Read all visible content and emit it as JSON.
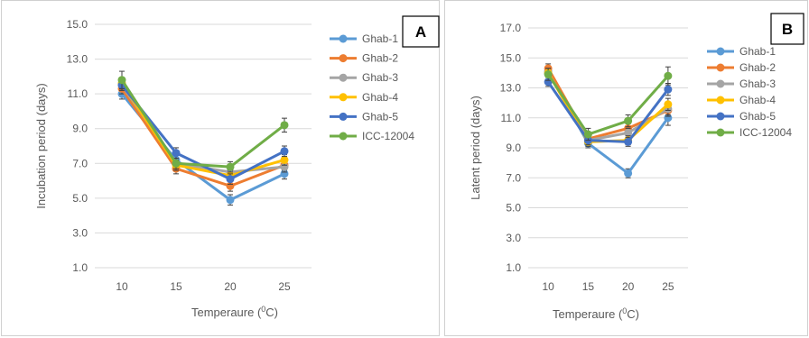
{
  "colors": {
    "Ghab-1": "#5b9bd5",
    "Ghab-2": "#ed7d31",
    "Ghab-3": "#a5a5a5",
    "Ghab-4": "#ffc000",
    "Ghab-5": "#4472c4",
    "ICC-12004": "#70ad47"
  },
  "chart_data": [
    {
      "panel": "A",
      "type": "line",
      "x": [
        "10",
        "15",
        "20",
        "25"
      ],
      "xlabel": "Temperaure (0C)",
      "xlabel_main": "Temperaure (",
      "xlabel_sup": "0",
      "xlabel_unit": "C)",
      "ylabel": "Incubation period (days)",
      "ylim": [
        1.0,
        15.0
      ],
      "yticks": [
        "1.0",
        "3.0",
        "5.0",
        "7.0",
        "9.0",
        "11.0",
        "13.0",
        "15.0"
      ],
      "grid": true,
      "legend": "right",
      "series": [
        {
          "name": "Ghab-1",
          "values": [
            11.0,
            7.2,
            4.9,
            6.4
          ],
          "err": [
            0.3,
            0.3,
            0.3,
            0.3
          ]
        },
        {
          "name": "Ghab-2",
          "values": [
            11.3,
            6.7,
            5.7,
            6.9
          ],
          "err": [
            0.3,
            0.3,
            0.3,
            0.3
          ]
        },
        {
          "name": "Ghab-3",
          "values": [
            11.5,
            7.0,
            6.5,
            6.8
          ],
          "err": [
            0.3,
            0.3,
            0.3,
            0.3
          ]
        },
        {
          "name": "Ghab-4",
          "values": [
            11.6,
            6.9,
            6.3,
            7.2
          ],
          "err": [
            0.3,
            0.3,
            0.3,
            0.3
          ]
        },
        {
          "name": "Ghab-5",
          "values": [
            11.5,
            7.6,
            6.1,
            7.7
          ],
          "err": [
            0.3,
            0.3,
            0.3,
            0.3
          ]
        },
        {
          "name": "ICC-12004",
          "values": [
            11.8,
            7.0,
            6.8,
            9.2
          ],
          "err": [
            0.5,
            0.3,
            0.3,
            0.4
          ]
        }
      ],
      "label": "A"
    },
    {
      "panel": "B",
      "type": "line",
      "x": [
        "10",
        "15",
        "20",
        "25"
      ],
      "xlabel": "Temperaure (0C)",
      "xlabel_main": "Temperaure (",
      "xlabel_sup": "0",
      "xlabel_unit": "C)",
      "ylabel": "Latent period (days)",
      "ylim": [
        1.0,
        17.0
      ],
      "yticks": [
        "1.0",
        "3.0",
        "5.0",
        "7.0",
        "9.0",
        "11.0",
        "13.0",
        "15.0",
        "17.0"
      ],
      "grid": true,
      "legend": "right",
      "series": [
        {
          "name": "Ghab-1",
          "values": [
            14.1,
            9.3,
            7.3,
            11.0
          ],
          "err": [
            0.3,
            0.3,
            0.3,
            0.5
          ]
        },
        {
          "name": "Ghab-2",
          "values": [
            14.3,
            9.6,
            10.3,
            11.5
          ],
          "err": [
            0.3,
            0.3,
            0.3,
            0.4
          ]
        },
        {
          "name": "Ghab-3",
          "values": [
            14.0,
            9.5,
            10.0,
            11.6
          ],
          "err": [
            0.3,
            0.3,
            0.3,
            0.4
          ]
        },
        {
          "name": "Ghab-4",
          "values": [
            14.0,
            9.4,
            9.5,
            11.9
          ],
          "err": [
            0.3,
            0.3,
            0.3,
            0.4
          ]
        },
        {
          "name": "Ghab-5",
          "values": [
            13.4,
            9.5,
            9.4,
            12.9
          ],
          "err": [
            0.3,
            0.3,
            0.3,
            0.4
          ]
        },
        {
          "name": "ICC-12004",
          "values": [
            13.9,
            9.9,
            10.8,
            13.8
          ],
          "err": [
            0.4,
            0.4,
            0.4,
            0.6
          ]
        }
      ],
      "label": "B"
    }
  ]
}
